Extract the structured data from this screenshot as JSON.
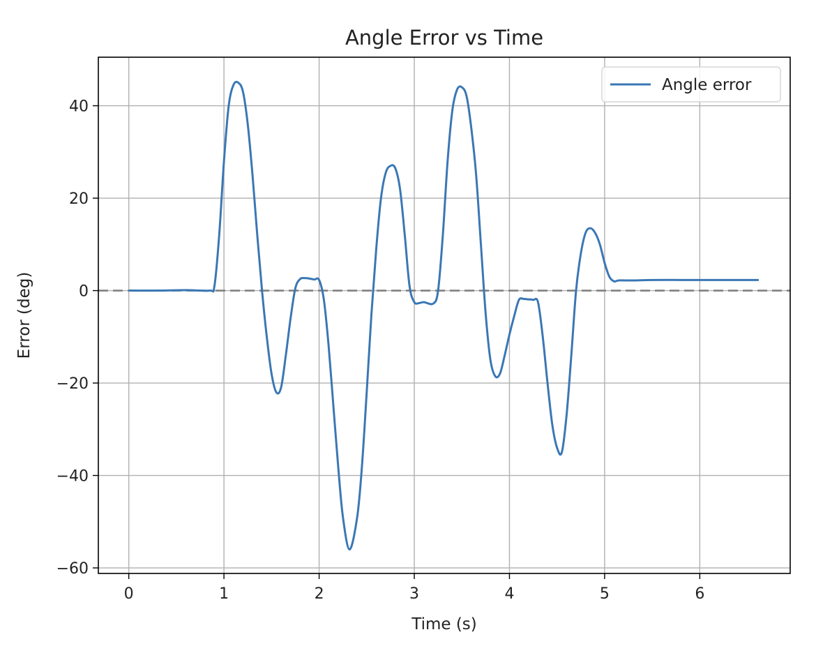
{
  "chart_data": {
    "type": "line",
    "title": "Angle Error vs Time",
    "xlabel": "Time (s)",
    "ylabel": "Error (deg)",
    "xlim": [
      -0.32,
      6.95
    ],
    "ylim": [
      -61.2,
      50.5
    ],
    "xticks": [
      0,
      1,
      2,
      3,
      4,
      5,
      6
    ],
    "xtick_labels": [
      "0",
      "1",
      "2",
      "3",
      "4",
      "5",
      "6"
    ],
    "yticks": [
      -60,
      -40,
      -20,
      0,
      20,
      40
    ],
    "ytick_labels": [
      "−60",
      "−40",
      "−20",
      "0",
      "20",
      "40"
    ],
    "grid": true,
    "legend": {
      "position": "top-right",
      "entries": [
        "Angle error"
      ]
    },
    "reference_line": {
      "y": 0,
      "style": "dashed",
      "color": "#808080"
    },
    "series": [
      {
        "name": "Angle error",
        "color": "#3a77b5",
        "x": [
          0.0,
          0.3,
          0.6,
          0.85,
          0.9,
          0.95,
          1.0,
          1.05,
          1.1,
          1.15,
          1.2,
          1.25,
          1.3,
          1.35,
          1.4,
          1.45,
          1.5,
          1.55,
          1.6,
          1.65,
          1.7,
          1.75,
          1.8,
          1.85,
          1.9,
          1.95,
          2.0,
          2.05,
          2.1,
          2.15,
          2.2,
          2.25,
          2.32,
          2.4,
          2.45,
          2.5,
          2.55,
          2.6,
          2.65,
          2.7,
          2.75,
          2.8,
          2.85,
          2.9,
          2.95,
          3.0,
          3.05,
          3.1,
          3.2,
          3.25,
          3.3,
          3.35,
          3.4,
          3.45,
          3.5,
          3.55,
          3.6,
          3.65,
          3.7,
          3.75,
          3.8,
          3.85,
          3.9,
          3.95,
          4.0,
          4.05,
          4.1,
          4.15,
          4.2,
          4.25,
          4.3,
          4.35,
          4.4,
          4.45,
          4.5,
          4.55,
          4.6,
          4.65,
          4.7,
          4.75,
          4.8,
          4.85,
          4.9,
          4.95,
          5.0,
          5.05,
          5.1,
          5.15,
          5.3,
          5.5,
          5.8,
          6.1,
          6.4,
          6.62
        ],
        "y": [
          0.0,
          0.0,
          0.1,
          0.0,
          1.0,
          12.0,
          28.0,
          40.0,
          44.5,
          45.0,
          43.0,
          36.0,
          25.0,
          12.0,
          0.0,
          -10.0,
          -18.0,
          -22.0,
          -21.0,
          -14.0,
          -6.0,
          0.5,
          2.5,
          2.7,
          2.6,
          2.4,
          2.3,
          -2.0,
          -12.0,
          -25.0,
          -38.0,
          -49.0,
          -56.0,
          -49.0,
          -38.0,
          -22.0,
          -5.0,
          9.0,
          20.0,
          25.5,
          27.0,
          26.5,
          22.0,
          12.0,
          1.0,
          -2.5,
          -2.7,
          -2.5,
          -2.8,
          0.0,
          12.0,
          28.0,
          39.0,
          43.5,
          44.0,
          42.0,
          35.0,
          25.0,
          10.0,
          -5.0,
          -15.0,
          -18.5,
          -18.0,
          -14.0,
          -9.5,
          -5.5,
          -2.0,
          -1.8,
          -1.9,
          -2.0,
          -2.5,
          -10.0,
          -20.0,
          -29.0,
          -34.0,
          -35.0,
          -27.0,
          -14.0,
          0.0,
          8.0,
          12.5,
          13.5,
          12.5,
          10.0,
          6.0,
          3.0,
          2.0,
          2.2,
          2.2,
          2.3,
          2.3,
          2.3,
          2.3,
          2.3
        ]
      }
    ]
  }
}
